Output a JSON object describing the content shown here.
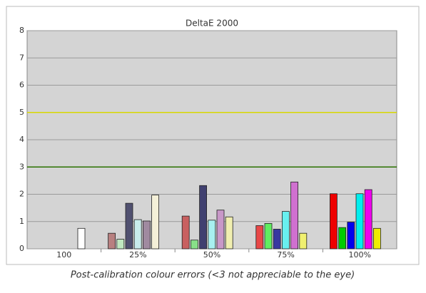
{
  "chart_data": {
    "type": "bar",
    "title": "DeltaE 2000",
    "caption": "Post-calibration colour errors (<3 not appreciable to the eye)",
    "categories": [
      "100",
      "25%",
      "50%",
      "75%",
      "100%"
    ],
    "series": [
      {
        "colors": [
          "#ffffff",
          "#b88080",
          "#c86060",
          "#e84848",
          "#ee0000"
        ],
        "values": [
          null,
          0.57,
          1.2,
          0.85,
          2.02
        ]
      },
      {
        "colors": [
          "#ffffff",
          "#c0e8c0",
          "#88e088",
          "#60ee60",
          "#00cc00"
        ],
        "values": [
          null,
          0.35,
          0.32,
          0.93,
          0.78
        ]
      },
      {
        "colors": [
          "#ffffff",
          "#505070",
          "#404070",
          "#3838a0",
          "#0000ee"
        ],
        "values": [
          null,
          1.67,
          2.32,
          0.72,
          0.98
        ]
      },
      {
        "colors": [
          "#ffffff",
          "#c8ecec",
          "#a8f0f0",
          "#68f0f0",
          "#00eeee"
        ],
        "values": [
          null,
          1.07,
          1.05,
          1.37,
          2.02
        ]
      },
      {
        "colors": [
          "#ffffff",
          "#a08aa0",
          "#c898c8",
          "#d070d0",
          "#ee00ee"
        ],
        "values": [
          null,
          1.02,
          1.42,
          2.45,
          2.17
        ]
      },
      {
        "colors": [
          "#ffffff",
          "#f4f0d8",
          "#f0eeb0",
          "#f0f070",
          "#eeee00"
        ],
        "values": [
          0.75,
          1.97,
          1.17,
          0.57,
          0.75
        ]
      }
    ],
    "reference_lines": [
      {
        "value": 5,
        "color": "#d8d800"
      },
      {
        "value": 3,
        "color": "#2a7000"
      }
    ],
    "ylim": [
      0,
      8
    ],
    "yticks": [
      0,
      1,
      2,
      3,
      4,
      5,
      6,
      7,
      8
    ],
    "grid": true
  }
}
